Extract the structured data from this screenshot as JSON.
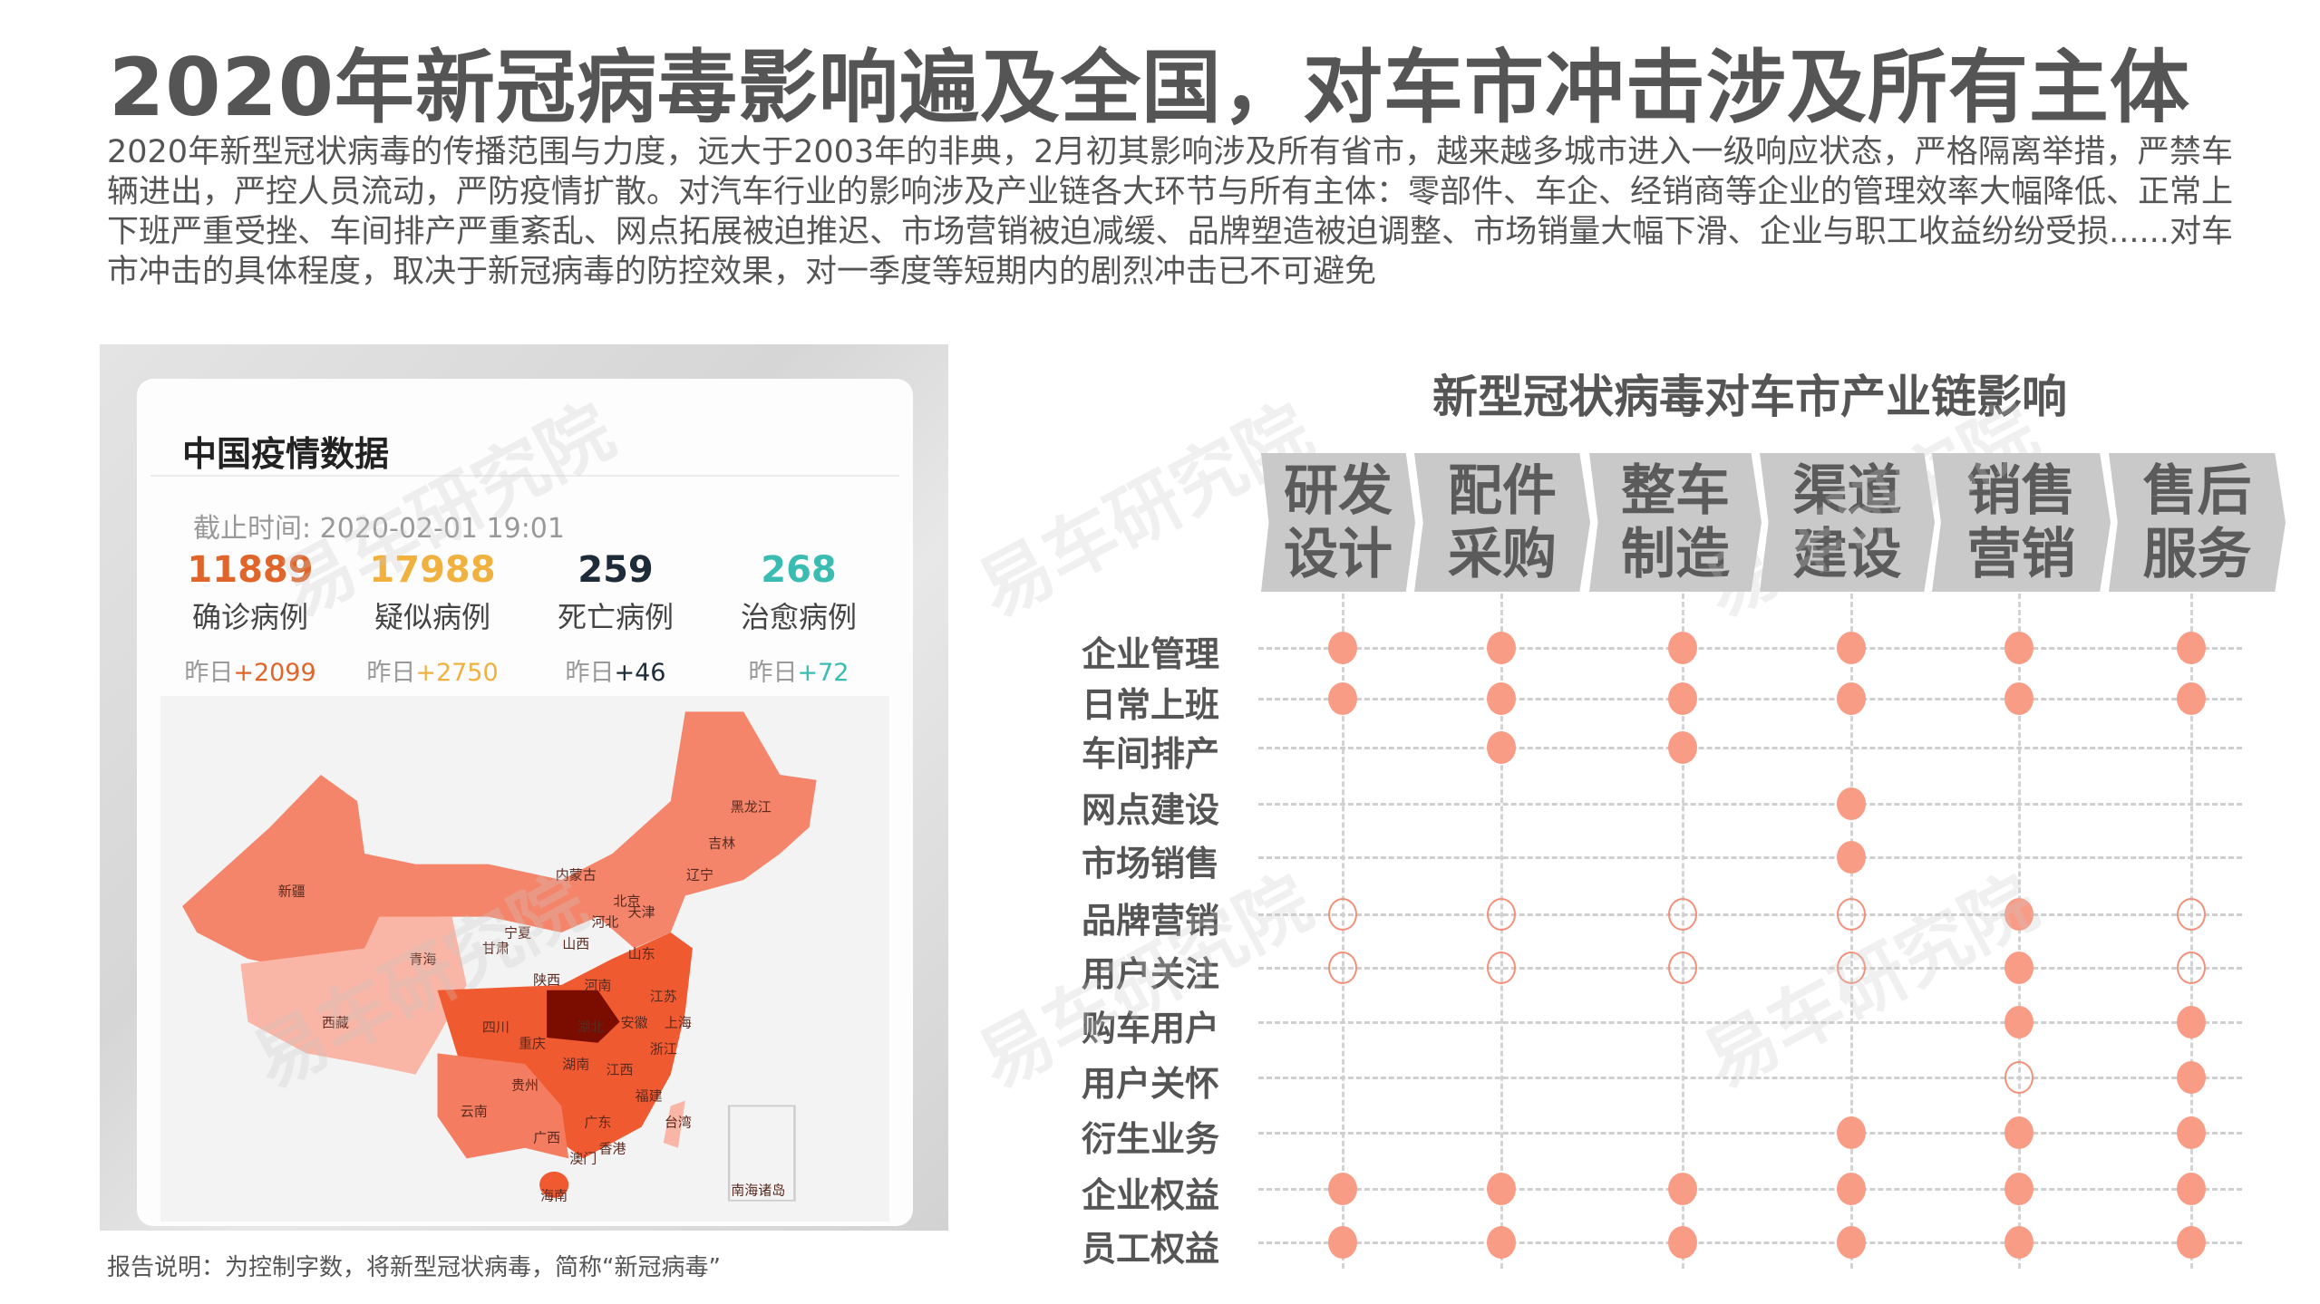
{
  "title": "2020年新冠病毒影响遍及全国，对车市冲击涉及所有主体",
  "intro": "2020年新型冠状病毒的传播范围与力度，远大于2003年的非典，2月初其影响涉及所有省市，越来越多城市进入一级响应状态，严格隔离举措，严禁车辆进出，严控人员流动，严防疫情扩散。对汽车行业的影响涉及产业链各大环节与所有主体：零部件、车企、经销商等企业的管理效率大幅降低、正常上下班严重受挫、车间排产严重紊乱、网点拓展被迫推迟、市场营销被迫减缓、品牌塑造被迫调整、市场销量大幅下滑、企业与职工收益纷纷受损......对车市冲击的具体程度，取决于新冠病毒的防控效果，对一季度等短期内的剧烈冲击已不可避免",
  "epidemic_card": {
    "title": "中国疫情数据",
    "as_of": "截止时间: 2020-02-01 19:01",
    "stats": [
      {
        "value": "11889",
        "label": "确诊病例",
        "yesterday_prefix": "昨日",
        "yesterday": "+2099",
        "color": "#e0652a"
      },
      {
        "value": "17988",
        "label": "疑似病例",
        "yesterday_prefix": "昨日",
        "yesterday": "+2750",
        "color": "#f0b13e"
      },
      {
        "value": "259",
        "label": "死亡病例",
        "yesterday_prefix": "昨日",
        "yesterday": "+46",
        "color": "#1e2b38"
      },
      {
        "value": "268",
        "label": "治愈病例",
        "yesterday_prefix": "昨日",
        "yesterday": "+72",
        "color": "#3bbcb2"
      }
    ],
    "map_labels": [
      "新疆",
      "西藏",
      "青海",
      "甘肃",
      "宁夏",
      "内蒙古",
      "黑龙江",
      "吉林",
      "辽宁",
      "北京",
      "天津",
      "河北",
      "山西",
      "山东",
      "陕西",
      "河南",
      "江苏",
      "四川",
      "重庆",
      "湖北",
      "安徽",
      "上海",
      "浙江",
      "湖南",
      "江西",
      "贵州",
      "福建",
      "云南",
      "广西",
      "广东",
      "台湾",
      "香港",
      "澳门",
      "海南",
      "南海诸岛"
    ]
  },
  "footnote": "报告说明：为控制字数，将新型冠状病毒，简称“新冠病毒”",
  "impact_chart": {
    "title": "新型冠状病毒对车市产业链影响",
    "stages": [
      "研发设计",
      "配件采购",
      "整车制造",
      "渠道建设",
      "销售营销",
      "售后服务"
    ],
    "rows": [
      {
        "label": "企业管理",
        "marks": [
          "filled",
          "filled",
          "filled",
          "filled",
          "filled",
          "filled"
        ]
      },
      {
        "label": "日常上班",
        "marks": [
          "filled",
          "filled",
          "filled",
          "filled",
          "filled",
          "filled"
        ]
      },
      {
        "label": "车间排产",
        "marks": [
          null,
          "filled",
          "filled",
          null,
          null,
          null
        ]
      },
      {
        "label": "网点建设",
        "marks": [
          null,
          null,
          null,
          "filled",
          null,
          null
        ]
      },
      {
        "label": "市场销售",
        "marks": [
          null,
          null,
          null,
          "filled",
          null,
          null
        ]
      },
      {
        "label": "品牌营销",
        "marks": [
          "hollow",
          "hollow",
          "hollow",
          "hollow",
          "filled",
          "hollow"
        ]
      },
      {
        "label": "用户关注",
        "marks": [
          "hollow",
          "hollow",
          "hollow",
          "hollow",
          "filled",
          "hollow"
        ]
      },
      {
        "label": "购车用户",
        "marks": [
          null,
          null,
          null,
          null,
          "filled",
          "filled"
        ]
      },
      {
        "label": "用户关怀",
        "marks": [
          null,
          null,
          null,
          null,
          "hollow",
          "filled"
        ]
      },
      {
        "label": "衍生业务",
        "marks": [
          null,
          null,
          null,
          "filled",
          "filled",
          "filled"
        ]
      },
      {
        "label": "企业权益",
        "marks": [
          "filled",
          "filled",
          "filled",
          "filled",
          "filled",
          "filled"
        ]
      },
      {
        "label": "员工权益",
        "marks": [
          "filled",
          "filled",
          "filled",
          "filled",
          "filled",
          "filled"
        ]
      }
    ],
    "mark_color": "#f99c86",
    "stage_color": "#c9c9c9"
  },
  "watermark": "易车研究院"
}
